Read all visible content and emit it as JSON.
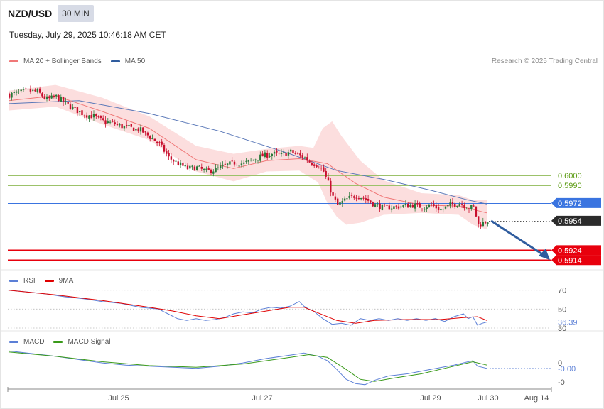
{
  "header": {
    "symbol": "NZD/USD",
    "timeframe": "30 MIN",
    "datetime": "Tuesday, July 29, 2025 10:46:18 AM CET",
    "copyright": "Research © 2025 Trading Central"
  },
  "legends": {
    "price": [
      {
        "label": "MA 20 + Bollinger Bands",
        "color": "#f07878"
      },
      {
        "label": "MA 50",
        "color": "#2f5c9e"
      }
    ],
    "rsi": [
      {
        "label": "RSI",
        "color": "#5b7fd6"
      },
      {
        "label": "9MA",
        "color": "#e00000"
      }
    ],
    "macd": [
      {
        "label": "MACD",
        "color": "#5b7fd6"
      },
      {
        "label": "MACD Signal",
        "color": "#3a9a1a"
      }
    ]
  },
  "colors": {
    "up_candle": "#2a7a3a",
    "down_candle": "#c8102e",
    "band_fill": "#fbd3d3",
    "ma20": "#f07878",
    "ma50": "#5a78b8",
    "green_level": "#9cc26a",
    "green_text": "#5a9a10",
    "blue_level": "#3a74e0",
    "red_level": "#e8000d",
    "current_badge": "#2b2b2b",
    "arrow": "#2f5c9e",
    "rsi": "#5b7fd6",
    "rsi_ma": "#e00000",
    "macd": "#5b7fd6",
    "macd_signal": "#3a9a1a"
  },
  "chart_data": [
    {
      "id": "price",
      "type": "candlestick",
      "ylim": [
        0.5907,
        0.6109
      ],
      "x_tick_labels": [
        "Jul 25",
        "Jul 27",
        "Jul 29",
        "Jul 30",
        "Aug 14"
      ],
      "levels": [
        {
          "label": "0.6000",
          "value": 0.6,
          "style": "resistance"
        },
        {
          "label": "0.5990",
          "value": 0.599,
          "style": "resistance"
        },
        {
          "label": "0.5972",
          "value": 0.5972,
          "style": "pivot"
        },
        {
          "label": "0.5954",
          "value": 0.5954,
          "style": "current"
        },
        {
          "label": "0.5924",
          "value": 0.5924,
          "style": "support"
        },
        {
          "label": "0.5914",
          "value": 0.5914,
          "style": "support"
        }
      ],
      "forecast_arrow": {
        "from": {
          "index": 1.2,
          "value": 0.5954
        },
        "to": {
          "index": 6.0,
          "value": 0.5914
        }
      },
      "close_path": [
        [
          0,
          0.6082
        ],
        [
          8,
          0.6086
        ],
        [
          12,
          0.6085
        ],
        [
          16,
          0.6077
        ],
        [
          20,
          0.608
        ],
        [
          24,
          0.6073
        ],
        [
          28,
          0.6067
        ],
        [
          32,
          0.6062
        ],
        [
          36,
          0.606
        ],
        [
          40,
          0.6055
        ],
        [
          44,
          0.6053
        ],
        [
          48,
          0.605
        ],
        [
          52,
          0.6048
        ],
        [
          56,
          0.6046
        ],
        [
          60,
          0.6039
        ],
        [
          64,
          0.6032
        ],
        [
          68,
          0.6018
        ],
        [
          72,
          0.6012
        ],
        [
          76,
          0.6007
        ],
        [
          80,
          0.6008
        ],
        [
          84,
          0.6004
        ],
        [
          88,
          0.6006
        ],
        [
          92,
          0.601
        ],
        [
          96,
          0.6013
        ],
        [
          100,
          0.6012
        ],
        [
          104,
          0.6016
        ],
        [
          108,
          0.602
        ],
        [
          112,
          0.6022
        ],
        [
          116,
          0.6021
        ],
        [
          120,
          0.6024
        ],
        [
          124,
          0.602
        ],
        [
          126,
          0.6018
        ],
        [
          128,
          0.6014
        ],
        [
          130,
          0.6012
        ],
        [
          132,
          0.601
        ],
        [
          134,
          0.6004
        ],
        [
          136,
          0.5992
        ],
        [
          138,
          0.5978
        ],
        [
          140,
          0.597
        ],
        [
          144,
          0.5976
        ],
        [
          148,
          0.598
        ],
        [
          152,
          0.5976
        ],
        [
          156,
          0.597
        ],
        [
          160,
          0.5967
        ],
        [
          164,
          0.5968
        ],
        [
          168,
          0.5969
        ],
        [
          172,
          0.597
        ],
        [
          176,
          0.5968
        ],
        [
          180,
          0.597
        ],
        [
          184,
          0.5965
        ],
        [
          188,
          0.597
        ],
        [
          192,
          0.5972
        ],
        [
          196,
          0.5967
        ],
        [
          198,
          0.5968
        ],
        [
          200,
          0.595
        ],
        [
          202,
          0.5952
        ],
        [
          204,
          0.5954
        ]
      ],
      "ma20": [
        [
          0,
          0.6076
        ],
        [
          20,
          0.6081
        ],
        [
          40,
          0.6065
        ],
        [
          60,
          0.6048
        ],
        [
          80,
          0.6016
        ],
        [
          96,
          0.6007
        ],
        [
          110,
          0.6015
        ],
        [
          124,
          0.6017
        ],
        [
          136,
          0.6012
        ],
        [
          148,
          0.5992
        ],
        [
          160,
          0.5978
        ],
        [
          176,
          0.597
        ],
        [
          192,
          0.5969
        ],
        [
          204,
          0.5962
        ]
      ],
      "ma50": [
        [
          0,
          0.6073
        ],
        [
          30,
          0.6076
        ],
        [
          60,
          0.6063
        ],
        [
          90,
          0.6045
        ],
        [
          120,
          0.6022
        ],
        [
          140,
          0.6005
        ],
        [
          160,
          0.5996
        ],
        [
          180,
          0.5985
        ],
        [
          196,
          0.5975
        ],
        [
          204,
          0.5971
        ]
      ],
      "bb_upper": [
        [
          0,
          0.6086
        ],
        [
          20,
          0.6092
        ],
        [
          40,
          0.6079
        ],
        [
          60,
          0.606
        ],
        [
          80,
          0.603
        ],
        [
          96,
          0.6022
        ],
        [
          110,
          0.6027
        ],
        [
          124,
          0.603
        ],
        [
          130,
          0.6028
        ],
        [
          134,
          0.6048
        ],
        [
          138,
          0.6055
        ],
        [
          142,
          0.604
        ],
        [
          150,
          0.6015
        ],
        [
          160,
          0.5995
        ],
        [
          176,
          0.5982
        ],
        [
          192,
          0.598
        ],
        [
          198,
          0.5975
        ],
        [
          204,
          0.5975
        ]
      ],
      "bb_lower": [
        [
          0,
          0.6066
        ],
        [
          20,
          0.607
        ],
        [
          40,
          0.6052
        ],
        [
          60,
          0.6036
        ],
        [
          80,
          0.6004
        ],
        [
          96,
          0.5994
        ],
        [
          110,
          0.6004
        ],
        [
          124,
          0.6005
        ],
        [
          132,
          0.5993
        ],
        [
          136,
          0.5972
        ],
        [
          140,
          0.5958
        ],
        [
          144,
          0.595
        ],
        [
          150,
          0.5952
        ],
        [
          160,
          0.596
        ],
        [
          176,
          0.5962
        ],
        [
          192,
          0.596
        ],
        [
          198,
          0.595
        ],
        [
          204,
          0.5945
        ]
      ]
    },
    {
      "id": "rsi",
      "type": "line",
      "ylim": [
        30,
        78
      ],
      "tick_labels": [
        {
          "label": "70",
          "value": 70
        },
        {
          "label": "50",
          "value": 50
        },
        {
          "label": "30",
          "value": 30
        }
      ],
      "current_label": "36.39",
      "current_value": 36.39,
      "series": [
        {
          "name": "RSI",
          "values": [
            [
              0,
              70
            ],
            [
              8,
              68
            ],
            [
              16,
              66
            ],
            [
              24,
              63
            ],
            [
              32,
              61
            ],
            [
              40,
              58
            ],
            [
              48,
              56
            ],
            [
              56,
              52
            ],
            [
              64,
              50
            ],
            [
              68,
              45
            ],
            [
              72,
              40
            ],
            [
              76,
              38
            ],
            [
              80,
              40
            ],
            [
              84,
              38
            ],
            [
              88,
              39
            ],
            [
              92,
              41
            ],
            [
              96,
              45
            ],
            [
              100,
              47
            ],
            [
              104,
              46
            ],
            [
              108,
              50
            ],
            [
              112,
              52
            ],
            [
              116,
              51
            ],
            [
              120,
              53
            ],
            [
              124,
              58
            ],
            [
              126,
              53
            ],
            [
              128,
              50
            ],
            [
              130,
              48
            ],
            [
              134,
              40
            ],
            [
              138,
              34
            ],
            [
              142,
              35
            ],
            [
              146,
              33
            ],
            [
              150,
              40
            ],
            [
              154,
              38
            ],
            [
              158,
              40
            ],
            [
              162,
              38
            ],
            [
              166,
              40
            ],
            [
              170,
              38
            ],
            [
              174,
              40
            ],
            [
              178,
              38
            ],
            [
              182,
              40
            ],
            [
              186,
              37
            ],
            [
              190,
              42
            ],
            [
              194,
              45
            ],
            [
              196,
              40
            ],
            [
              198,
              42
            ],
            [
              200,
              33
            ],
            [
              202,
              35
            ],
            [
              204,
              36.39
            ]
          ]
        },
        {
          "name": "9MA",
          "values": [
            [
              0,
              70
            ],
            [
              20,
              65
            ],
            [
              40,
              59
            ],
            [
              60,
              52
            ],
            [
              70,
              48
            ],
            [
              80,
              43
            ],
            [
              90,
              40
            ],
            [
              100,
              44
            ],
            [
              110,
              48
            ],
            [
              120,
              52
            ],
            [
              126,
              52
            ],
            [
              132,
              46
            ],
            [
              140,
              38
            ],
            [
              148,
              35
            ],
            [
              156,
              38
            ],
            [
              170,
              39
            ],
            [
              184,
              39
            ],
            [
              194,
              41
            ],
            [
              200,
              42
            ],
            [
              204,
              38
            ]
          ]
        }
      ]
    },
    {
      "id": "macd",
      "type": "line",
      "ylim": [
        -0.00048,
        0.0003
      ],
      "tick_labels": [
        {
          "label": "0",
          "value": 0
        },
        {
          "label": "-0",
          "value": -0.00035
        }
      ],
      "current_label": "-0.00",
      "current_value": -0.0001,
      "series": [
        {
          "name": "MACD",
          "values": [
            [
              0,
              0.00022
            ],
            [
              20,
              0.00012
            ],
            [
              30,
              6e-05
            ],
            [
              40,
              0.0
            ],
            [
              50,
              -4e-05
            ],
            [
              60,
              -6e-05
            ],
            [
              70,
              -8e-05
            ],
            [
              80,
              -0.0001
            ],
            [
              90,
              -6e-05
            ],
            [
              100,
              0.0
            ],
            [
              110,
              8e-05
            ],
            [
              120,
              0.00014
            ],
            [
              126,
              0.00018
            ],
            [
              132,
              0.00012
            ],
            [
              136,
              4e-05
            ],
            [
              140,
              -0.00012
            ],
            [
              144,
              -0.0003
            ],
            [
              148,
              -0.00038
            ],
            [
              152,
              -0.0004
            ],
            [
              156,
              -0.00032
            ],
            [
              162,
              -0.00024
            ],
            [
              170,
              -0.0002
            ],
            [
              180,
              -0.00012
            ],
            [
              190,
              -4e-05
            ],
            [
              196,
              2e-05
            ],
            [
              198,
              4e-05
            ],
            [
              200,
              -6e-05
            ],
            [
              204,
              -0.0001
            ]
          ]
        },
        {
          "name": "MACD Signal",
          "values": [
            [
              0,
              0.0002
            ],
            [
              20,
              0.00012
            ],
            [
              40,
              2e-05
            ],
            [
              60,
              -5e-05
            ],
            [
              80,
              -8e-05
            ],
            [
              100,
              -2e-05
            ],
            [
              120,
              0.0001
            ],
            [
              128,
              0.00015
            ],
            [
              136,
              0.0001
            ],
            [
              144,
              -0.00012
            ],
            [
              150,
              -0.0003
            ],
            [
              156,
              -0.00034
            ],
            [
              164,
              -0.00028
            ],
            [
              176,
              -0.0002
            ],
            [
              188,
              -8e-05
            ],
            [
              198,
              2e-05
            ],
            [
              204,
              -4e-05
            ]
          ]
        }
      ]
    }
  ]
}
